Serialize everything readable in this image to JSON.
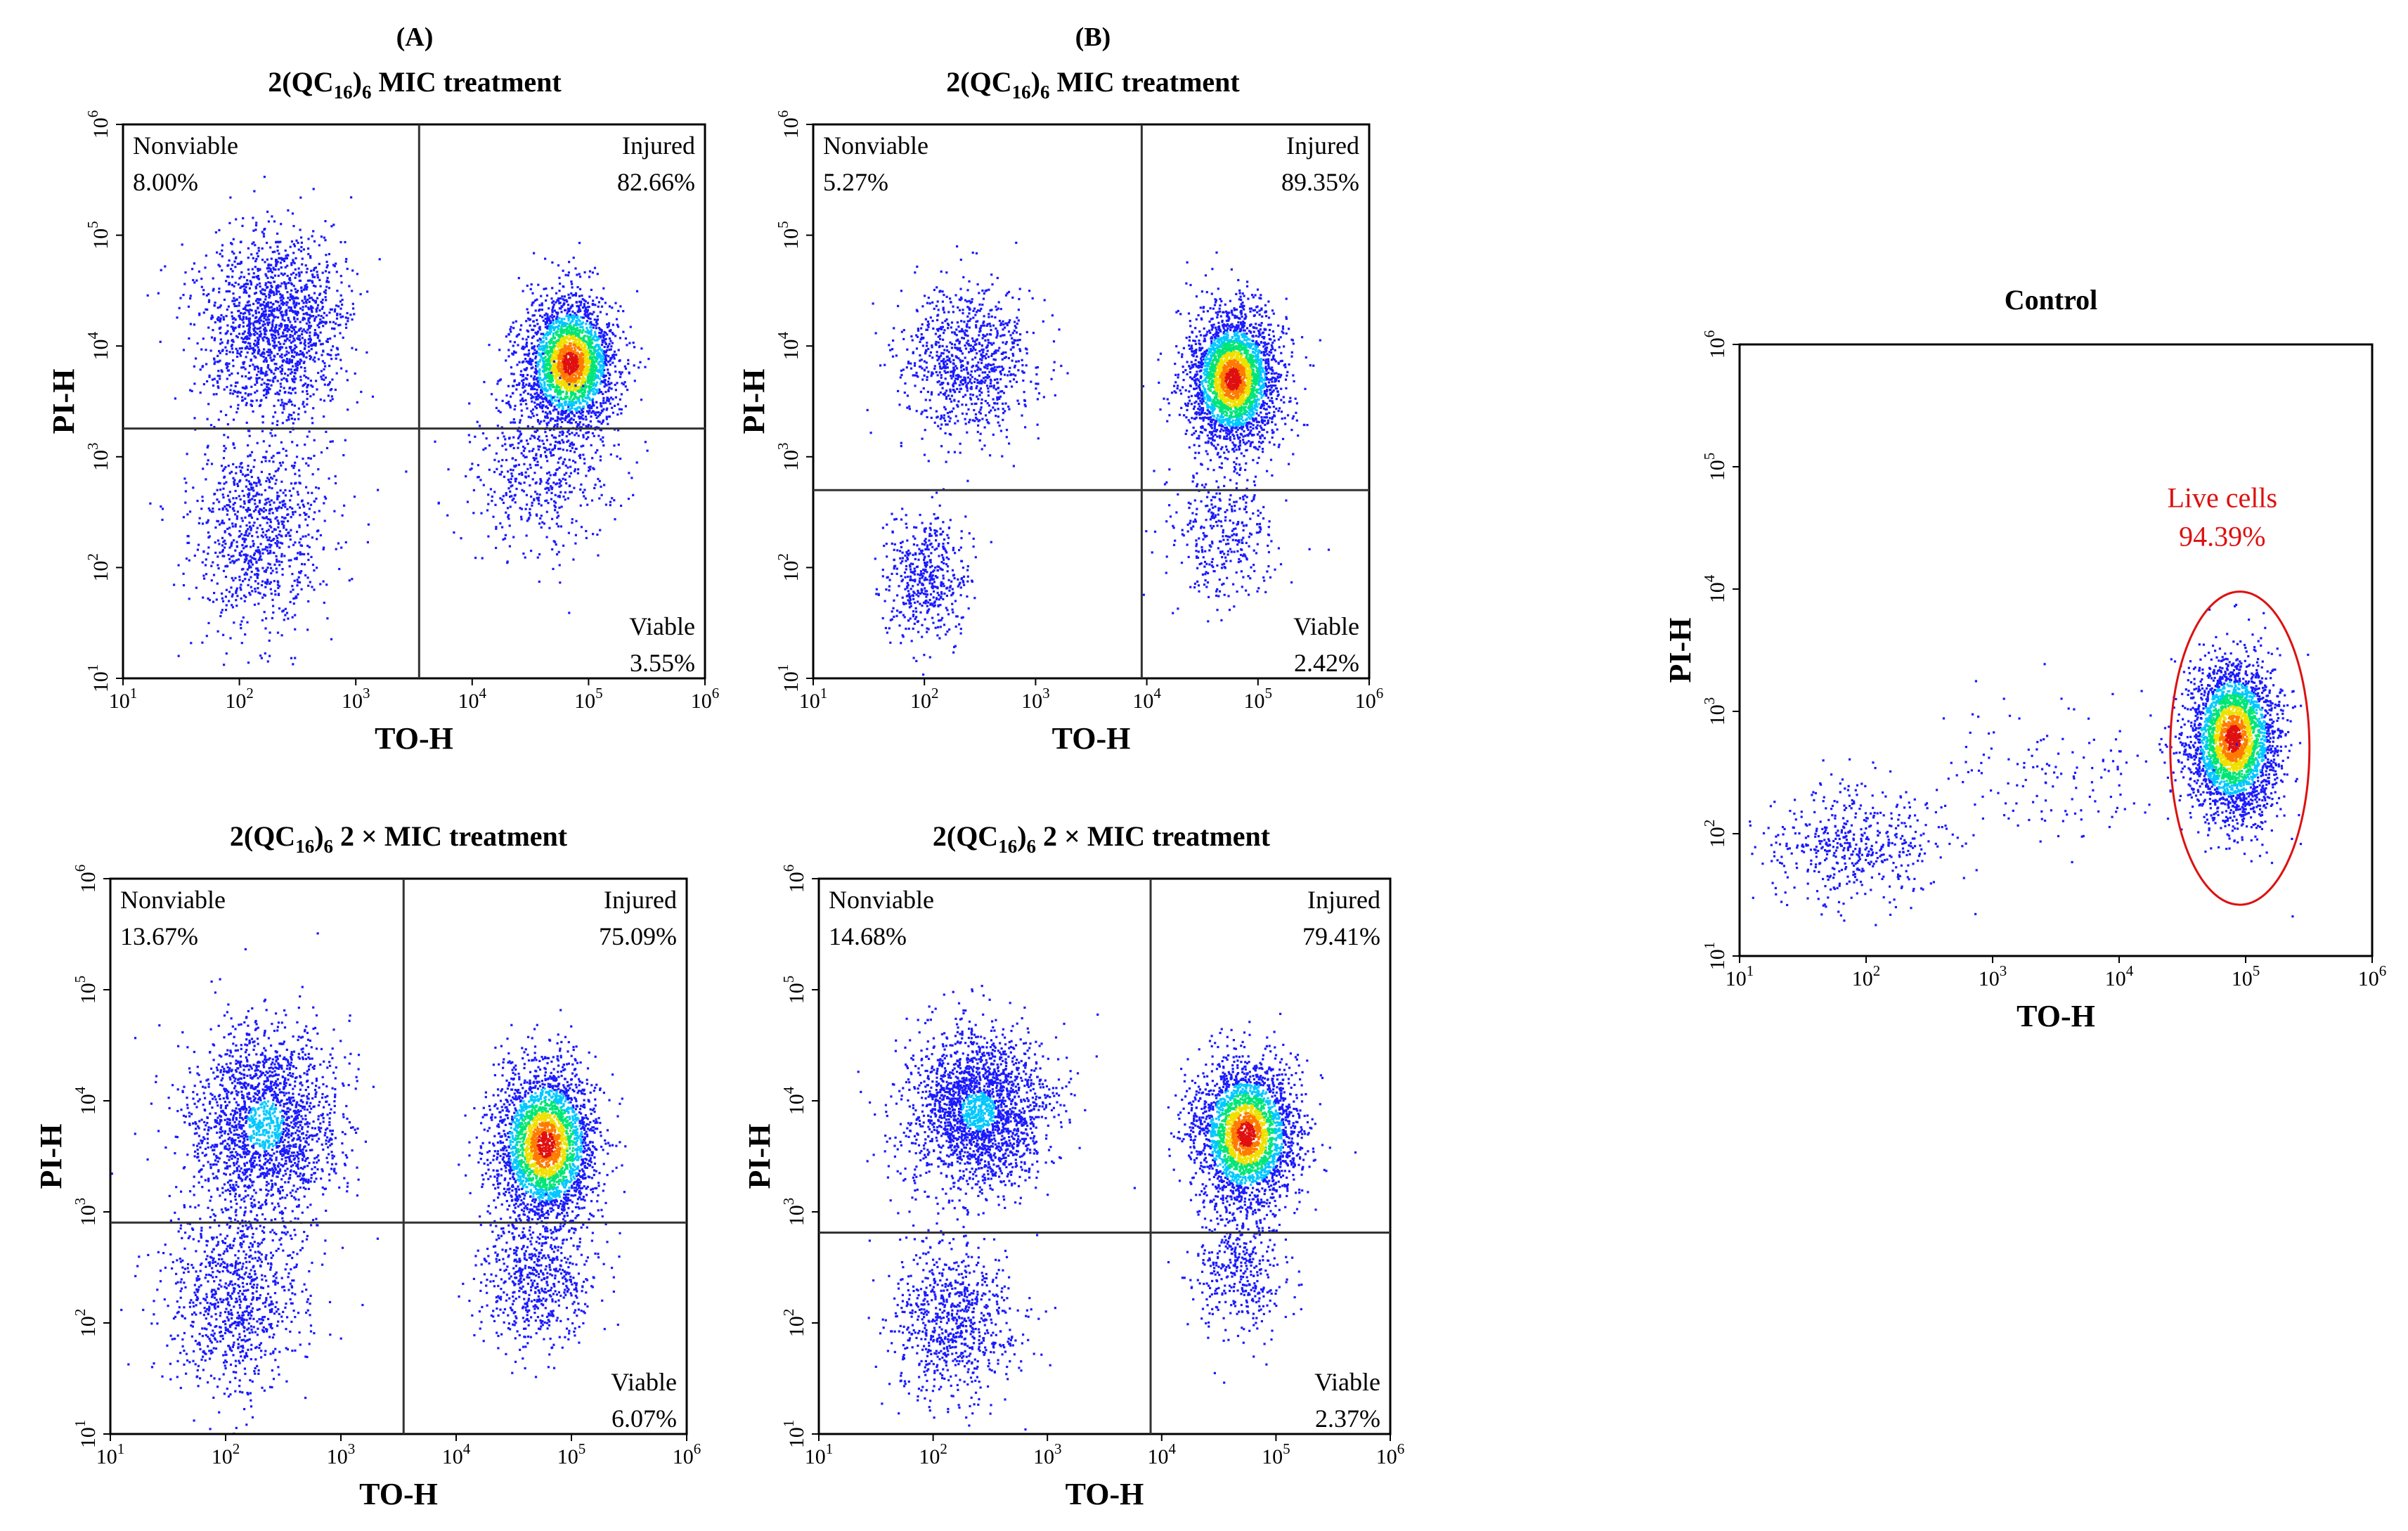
{
  "figure": {
    "panel_letters": [
      "(A)",
      "(B)"
    ]
  },
  "colors": {
    "density": [
      "#1a1aff",
      "#00c8ff",
      "#00e676",
      "#f0e000",
      "#ff7a00",
      "#e01010"
    ],
    "axis": "#000000",
    "live_label": "#dd1111",
    "gate": "#dd1111",
    "background": "#ffffff"
  },
  "chart_data": [
    {
      "id": "A-top",
      "type": "scatter",
      "title": "2(QC16)6 MIC treatment",
      "title_parts": {
        "pre": "2(QC",
        "sub1": "16",
        "mid": ")",
        "sub2": "6",
        "post": " MIC treatment"
      },
      "xlabel": "TO-H",
      "ylabel": "PI-H",
      "xscale": "log",
      "yscale": "log",
      "xlim": [
        10,
        1000000
      ],
      "ylim": [
        10,
        1000000
      ],
      "x_tick_values": [
        10,
        100,
        1000,
        10000,
        100000,
        1000000
      ],
      "x_tick_labels": [
        "10^1",
        "10^2",
        "10^3",
        "10^4",
        "10^5",
        "10^6"
      ],
      "y_tick_values": [
        10,
        100,
        1000,
        10000,
        100000,
        1000000
      ],
      "y_tick_labels": [
        "10^1",
        "10^2",
        "10^3",
        "10^4",
        "10^5",
        "10^6"
      ],
      "quadrant_gate": {
        "x": 3500,
        "y": 1800
      },
      "quadrants": [
        {
          "name": "Nonviable",
          "value": "8.00%",
          "position": "top-left"
        },
        {
          "name": "Injured",
          "value": "82.66%",
          "position": "top-right"
        },
        {
          "name": "Viable",
          "value": "3.55%",
          "position": "bottom-right"
        }
      ],
      "populations": [
        {
          "center": [
            200,
            15000
          ],
          "spread": [
            0.32,
            0.42
          ],
          "count": 1600,
          "density": "low"
        },
        {
          "center": [
            150,
            200
          ],
          "spread": [
            0.3,
            0.45
          ],
          "count": 900,
          "density": "low"
        },
        {
          "center": [
            70000,
            7000
          ],
          "spread": [
            0.2,
            0.3
          ],
          "count": 2600,
          "density": "high"
        },
        {
          "center": [
            40000,
            700
          ],
          "spread": [
            0.3,
            0.35
          ],
          "count": 500,
          "density": "low"
        }
      ]
    },
    {
      "id": "B-top",
      "type": "scatter",
      "title": "2(QC16)6 MIC treatment",
      "title_parts": {
        "pre": "2(QC",
        "sub1": "16",
        "mid": ")",
        "sub2": "6",
        "post": " MIC treatment"
      },
      "xlabel": "TO-H",
      "ylabel": "PI-H",
      "xscale": "log",
      "yscale": "log",
      "xlim": [
        10,
        1000000
      ],
      "ylim": [
        10,
        1000000
      ],
      "x_tick_values": [
        10,
        100,
        1000,
        10000,
        100000,
        1000000
      ],
      "x_tick_labels": [
        "10^1",
        "10^2",
        "10^3",
        "10^4",
        "10^5",
        "10^6"
      ],
      "y_tick_values": [
        10,
        100,
        1000,
        10000,
        100000,
        1000000
      ],
      "y_tick_labels": [
        "10^1",
        "10^2",
        "10^3",
        "10^4",
        "10^5",
        "10^6"
      ],
      "quadrant_gate": {
        "x": 9000,
        "y": 500
      },
      "quadrants": [
        {
          "name": "Nonviable",
          "value": "5.27%",
          "position": "top-left"
        },
        {
          "name": "Injured",
          "value": "89.35%",
          "position": "top-right"
        },
        {
          "name": "Viable",
          "value": "2.42%",
          "position": "bottom-right"
        }
      ],
      "populations": [
        {
          "center": [
            250,
            7000
          ],
          "spread": [
            0.3,
            0.35
          ],
          "count": 900,
          "density": "low"
        },
        {
          "center": [
            100,
            80
          ],
          "spread": [
            0.2,
            0.3
          ],
          "count": 500,
          "density": "low"
        },
        {
          "center": [
            60000,
            5000
          ],
          "spread": [
            0.2,
            0.3
          ],
          "count": 3000,
          "density": "high"
        },
        {
          "center": [
            50000,
            200
          ],
          "spread": [
            0.25,
            0.3
          ],
          "count": 350,
          "density": "low"
        }
      ]
    },
    {
      "id": "A-bottom",
      "type": "scatter",
      "title": "2(QC16)6 2 × MIC treatment",
      "title_parts": {
        "pre": "2(QC",
        "sub1": "16",
        "mid": ")",
        "sub2": "6",
        "post": " 2 × MIC treatment"
      },
      "xlabel": "TO-H",
      "ylabel": "PI-H",
      "xscale": "log",
      "yscale": "log",
      "xlim": [
        10,
        1000000
      ],
      "ylim": [
        10,
        1000000
      ],
      "x_tick_values": [
        10,
        100,
        1000,
        10000,
        100000,
        1000000
      ],
      "x_tick_labels": [
        "10^1",
        "10^2",
        "10^3",
        "10^4",
        "10^5",
        "10^6"
      ],
      "y_tick_values": [
        10,
        100,
        1000,
        10000,
        100000,
        1000000
      ],
      "y_tick_labels": [
        "10^1",
        "10^2",
        "10^3",
        "10^4",
        "10^5",
        "10^6"
      ],
      "quadrant_gate": {
        "x": 3500,
        "y": 800
      },
      "quadrants": [
        {
          "name": "Nonviable",
          "value": "13.67%",
          "position": "top-left"
        },
        {
          "name": "Injured",
          "value": "75.09%",
          "position": "top-right"
        },
        {
          "name": "Viable",
          "value": "6.07%",
          "position": "bottom-right"
        }
      ],
      "populations": [
        {
          "center": [
            220,
            6000
          ],
          "spread": [
            0.32,
            0.45
          ],
          "count": 2000,
          "density": "medium"
        },
        {
          "center": [
            120,
            150
          ],
          "spread": [
            0.3,
            0.4
          ],
          "count": 900,
          "density": "low"
        },
        {
          "center": [
            60000,
            4000
          ],
          "spread": [
            0.22,
            0.35
          ],
          "count": 2800,
          "density": "high"
        },
        {
          "center": [
            50000,
            250
          ],
          "spread": [
            0.25,
            0.3
          ],
          "count": 600,
          "density": "low"
        }
      ]
    },
    {
      "id": "B-bottom",
      "type": "scatter",
      "title": "2(QC16)6 2 × MIC treatment",
      "title_parts": {
        "pre": "2(QC",
        "sub1": "16",
        "mid": ")",
        "sub2": "6",
        "post": " 2 × MIC treatment"
      },
      "xlabel": "TO-H",
      "ylabel": "PI-H",
      "xscale": "log",
      "yscale": "log",
      "xlim": [
        10,
        1000000
      ],
      "ylim": [
        10,
        1000000
      ],
      "x_tick_values": [
        10,
        100,
        1000,
        10000,
        100000,
        1000000
      ],
      "x_tick_labels": [
        "10^1",
        "10^2",
        "10^3",
        "10^4",
        "10^5",
        "10^6"
      ],
      "y_tick_values": [
        10,
        100,
        1000,
        10000,
        100000,
        1000000
      ],
      "y_tick_labels": [
        "10^1",
        "10^2",
        "10^3",
        "10^4",
        "10^5",
        "10^6"
      ],
      "quadrant_gate": {
        "x": 8000,
        "y": 650
      },
      "quadrants": [
        {
          "name": "Nonviable",
          "value": "14.68%",
          "position": "top-left"
        },
        {
          "name": "Injured",
          "value": "79.41%",
          "position": "top-right"
        },
        {
          "name": "Viable",
          "value": "2.37%",
          "position": "bottom-right"
        }
      ],
      "populations": [
        {
          "center": [
            250,
            8000
          ],
          "spread": [
            0.3,
            0.35
          ],
          "count": 2200,
          "density": "medium"
        },
        {
          "center": [
            150,
            100
          ],
          "spread": [
            0.28,
            0.35
          ],
          "count": 800,
          "density": "low"
        },
        {
          "center": [
            55000,
            5000
          ],
          "spread": [
            0.22,
            0.32
          ],
          "count": 2800,
          "density": "high"
        },
        {
          "center": [
            50000,
            300
          ],
          "spread": [
            0.2,
            0.3
          ],
          "count": 400,
          "density": "low"
        }
      ]
    },
    {
      "id": "control",
      "type": "scatter",
      "title": "Control",
      "title_parts": {
        "pre": "Control",
        "sub1": "",
        "mid": "",
        "sub2": "",
        "post": ""
      },
      "xlabel": "TO-H",
      "ylabel": "PI-H",
      "xscale": "log",
      "yscale": "log",
      "xlim": [
        10,
        1000000
      ],
      "ylim": [
        10,
        1000000
      ],
      "x_tick_values": [
        10,
        100,
        1000,
        10000,
        100000,
        1000000
      ],
      "x_tick_labels": [
        "10^1",
        "10^2",
        "10^3",
        "10^4",
        "10^5",
        "10^6"
      ],
      "y_tick_values": [
        10,
        100,
        1000,
        10000,
        100000,
        1000000
      ],
      "y_tick_labels": [
        "10^1",
        "10^2",
        "10^3",
        "10^4",
        "10^5",
        "10^6"
      ],
      "live_gate": {
        "label": "Live cells",
        "value": "94.39%",
        "center": [
          90000,
          500
        ],
        "log_radius": [
          0.55,
          1.28
        ]
      },
      "populations": [
        {
          "center": [
            80000,
            600
          ],
          "spread": [
            0.18,
            0.32
          ],
          "count": 3000,
          "density": "high"
        },
        {
          "center": [
            80,
            80
          ],
          "spread": [
            0.35,
            0.25
          ],
          "count": 500,
          "density": "low"
        },
        {
          "center": [
            2500,
            300
          ],
          "spread": [
            0.5,
            0.3
          ],
          "count": 150,
          "density": "low"
        }
      ]
    }
  ]
}
